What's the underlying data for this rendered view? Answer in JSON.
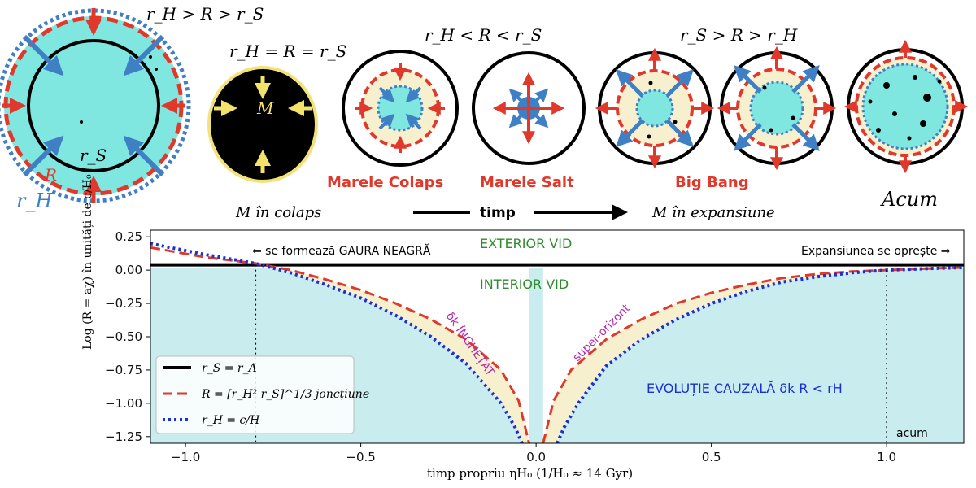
{
  "top": {
    "diagram1": {
      "condition": "r_H > R > r_S",
      "label_rs": "r_S",
      "label_R": "R",
      "label_rH": "r_H"
    },
    "diagram2": {
      "condition": "r_H = R = r_S",
      "center": "M"
    },
    "condition_collapse": "r_H < R < r_S",
    "condition_expand": "r_S > R > r_H",
    "label_big_crunch": "Marele Colaps",
    "label_big_bounce": "Marele Salt",
    "label_big_bang": "Big Bang",
    "label_now": "Acum",
    "label_collapse": "M în colaps",
    "label_time": "timp",
    "label_expand": "M în expansiune"
  },
  "chart_data": {
    "type": "line",
    "xlabel": "timp propriu  ηH₀  (1/H₀ ≈  14 Gyr)",
    "ylabel": "Log (R = aχ) în unități de c/H₀",
    "xlim": [
      -1.1,
      1.22
    ],
    "ylim": [
      -1.3,
      0.3
    ],
    "xticks": [
      "−1.0",
      "−0.5",
      "0.0",
      "0.5",
      "1.0"
    ],
    "xtick_values": [
      -1.0,
      -0.5,
      0.0,
      0.5,
      1.0
    ],
    "yticks": [
      "0.25",
      "0.00",
      "−0.25",
      "−0.50",
      "−0.75",
      "−1.00",
      "−1.25"
    ],
    "ytick_values": [
      0.25,
      0.0,
      -0.25,
      -0.5,
      -0.75,
      -1.0,
      -1.25
    ],
    "series": [
      {
        "name": "r_S = r_Λ",
        "color": "#000000",
        "style": "solid",
        "y_const": 0.04
      },
      {
        "name": "R = [r_H² r_S]^1/3  joncțiune",
        "color": "#e0392b",
        "style": "dashed",
        "x": [
          -1.1,
          -0.95,
          -0.8,
          -0.7,
          -0.6,
          -0.5,
          -0.4,
          -0.3,
          -0.2,
          -0.1,
          -0.05,
          -0.02,
          0.02,
          0.05,
          0.1,
          0.2,
          0.3,
          0.4,
          0.5,
          0.6,
          0.7,
          0.8,
          0.9,
          1.0,
          1.1,
          1.22
        ],
        "y": [
          0.17,
          0.1,
          0.05,
          0.0,
          -0.07,
          -0.15,
          -0.25,
          -0.37,
          -0.52,
          -0.75,
          -0.98,
          -1.3,
          -1.3,
          -0.98,
          -0.75,
          -0.52,
          -0.37,
          -0.25,
          -0.17,
          -0.11,
          -0.06,
          -0.03,
          -0.01,
          0.0,
          0.01,
          0.02
        ]
      },
      {
        "name": "r_H = c/H",
        "color": "#1a2fd6",
        "style": "dotted",
        "x": [
          -1.1,
          -0.95,
          -0.8,
          -0.7,
          -0.6,
          -0.5,
          -0.4,
          -0.3,
          -0.2,
          -0.1,
          -0.06,
          -0.04,
          0.06,
          0.08,
          0.12,
          0.2,
          0.3,
          0.4,
          0.5,
          0.6,
          0.7,
          0.8,
          0.9,
          1.0,
          1.1,
          1.22
        ],
        "y": [
          0.2,
          0.12,
          0.05,
          -0.02,
          -0.11,
          -0.21,
          -0.34,
          -0.5,
          -0.7,
          -1.0,
          -1.18,
          -1.3,
          -1.3,
          -1.18,
          -1.0,
          -0.72,
          -0.52,
          -0.37,
          -0.25,
          -0.16,
          -0.09,
          -0.05,
          -0.02,
          0.0,
          0.01,
          0.02
        ]
      }
    ],
    "vlines": [
      -0.8,
      1.0
    ],
    "annotations": {
      "black_hole": "⇐ se formează GAURA NEAGRĂ",
      "expansion_stops": "Expansiunea se oprește ⇒",
      "exterior": "EXTERIOR VID",
      "interior": "INTERIOR VID",
      "frozen": "δk ÎNGHEȚAT",
      "super_horizon": "super-orizont",
      "causal": "EVOLUȚIE CAUZALĂ δk  R < rH",
      "now": "acum"
    },
    "legend_position": "lower-left",
    "colors": {
      "interior_fill": "#c9ecef",
      "band_fill": "#f7f0cf",
      "exterior_text": "#2e8b2e",
      "causal_text": "#1a2fd6",
      "frozen_text": "#b02cb0"
    }
  }
}
